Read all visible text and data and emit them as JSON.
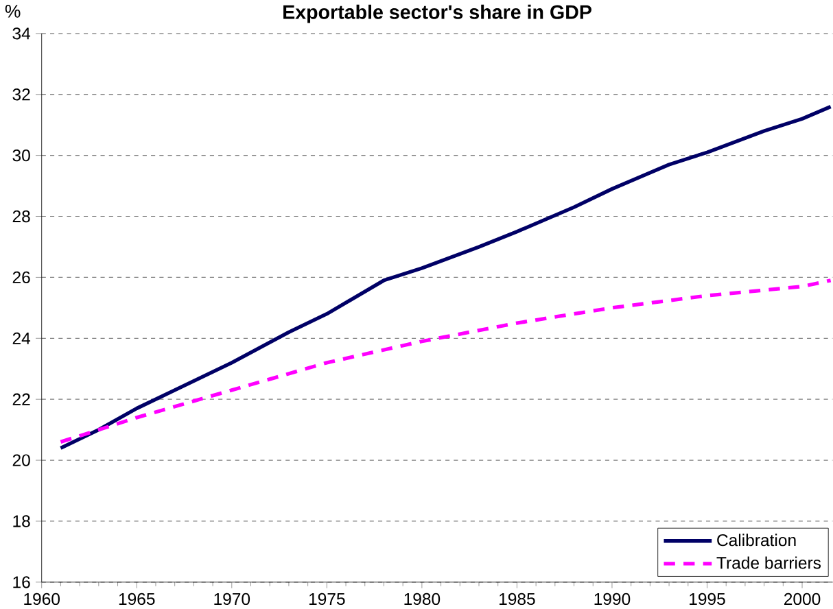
{
  "chart_data": {
    "type": "line",
    "title": "Exportable sector's share in GDP",
    "ylabel": "%",
    "xlim": [
      1960,
      2001.6
    ],
    "ylim": [
      16,
      34
    ],
    "xticks": [
      1960,
      1965,
      1970,
      1975,
      1980,
      1985,
      1990,
      1995,
      2000
    ],
    "yticks": [
      16,
      18,
      20,
      22,
      24,
      26,
      28,
      30,
      32,
      34
    ],
    "grid": "y",
    "legend": "bottom right",
    "marker": "none",
    "series": [
      {
        "name": "Calibration",
        "color": "#000066",
        "line_style": "solid",
        "x": [
          1961,
          1963,
          1965,
          1967,
          1970,
          1973,
          1975,
          1978,
          1980,
          1983,
          1985,
          1988,
          1990,
          1993,
          1995,
          1998,
          2000,
          2001.5
        ],
        "values": [
          20.4,
          21.0,
          21.7,
          22.3,
          23.2,
          24.2,
          24.8,
          25.9,
          26.3,
          27.0,
          27.5,
          28.3,
          28.9,
          29.7,
          30.1,
          30.8,
          31.2,
          31.6
        ]
      },
      {
        "name": "Trade barriers",
        "color": "#ff00ff",
        "line_style": "dashed",
        "x": [
          1961,
          1965,
          1970,
          1975,
          1980,
          1985,
          1990,
          1995,
          2000,
          2001.5
        ],
        "values": [
          20.6,
          21.4,
          22.3,
          23.2,
          23.9,
          24.5,
          25.0,
          25.4,
          25.7,
          25.9
        ]
      }
    ]
  }
}
